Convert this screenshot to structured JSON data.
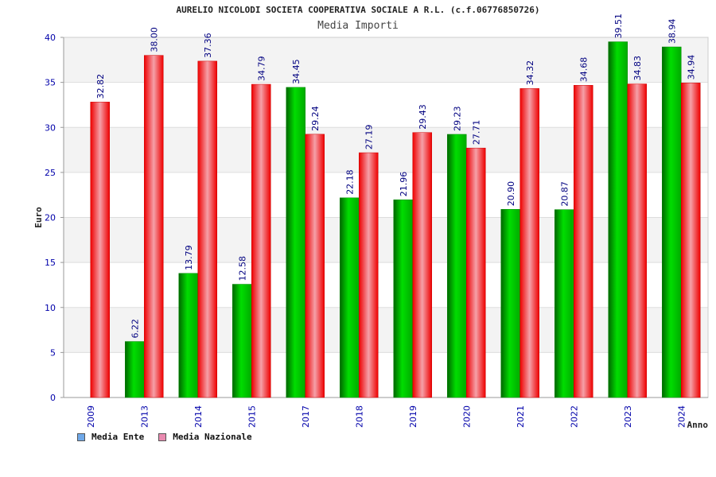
{
  "header": {
    "title": "AURELIO NICOLODI SOCIETA COOPERATIVA SOCIALE A R.L. (c.f.06776850726)",
    "subtitle": "Media Importi"
  },
  "legend": [
    {
      "label": "Media Ente",
      "color": "#6fa8e8"
    },
    {
      "label": "Media Nazionale",
      "color": "#e98ab0"
    }
  ],
  "chart_data": {
    "type": "bar",
    "xlabel": "Anno",
    "ylabel": "Euro",
    "ylim": [
      0,
      40
    ],
    "yticks": [
      0,
      5,
      10,
      15,
      20,
      25,
      30,
      35,
      40
    ],
    "grid": true,
    "legend_position": "bottom-left",
    "categories": [
      "2009",
      "2013",
      "2014",
      "2015",
      "2017",
      "2018",
      "2019",
      "2020",
      "2021",
      "2022",
      "2023",
      "2024"
    ],
    "series": [
      {
        "name": "Media Ente",
        "color": "#00cc00",
        "values": [
          null,
          6.22,
          13.79,
          12.58,
          34.45,
          22.18,
          21.96,
          29.23,
          20.9,
          20.87,
          39.51,
          38.94
        ],
        "labels": [
          "",
          "6.22",
          "13.79",
          "12.58",
          "34.45",
          "22.18",
          "21.96",
          "29.23",
          "20.90",
          "20.87",
          "39.51",
          "38.94"
        ]
      },
      {
        "name": "Media Nazionale",
        "color": "#ee1111",
        "values": [
          32.82,
          38.0,
          37.36,
          34.79,
          29.24,
          27.19,
          29.43,
          27.71,
          34.32,
          34.68,
          34.83,
          34.94
        ],
        "labels": [
          "32.82",
          "38.00",
          "37.36",
          "34.79",
          "29.24",
          "27.19",
          "29.43",
          "27.71",
          "34.32",
          "34.68",
          "34.83",
          "34.94"
        ]
      }
    ]
  }
}
